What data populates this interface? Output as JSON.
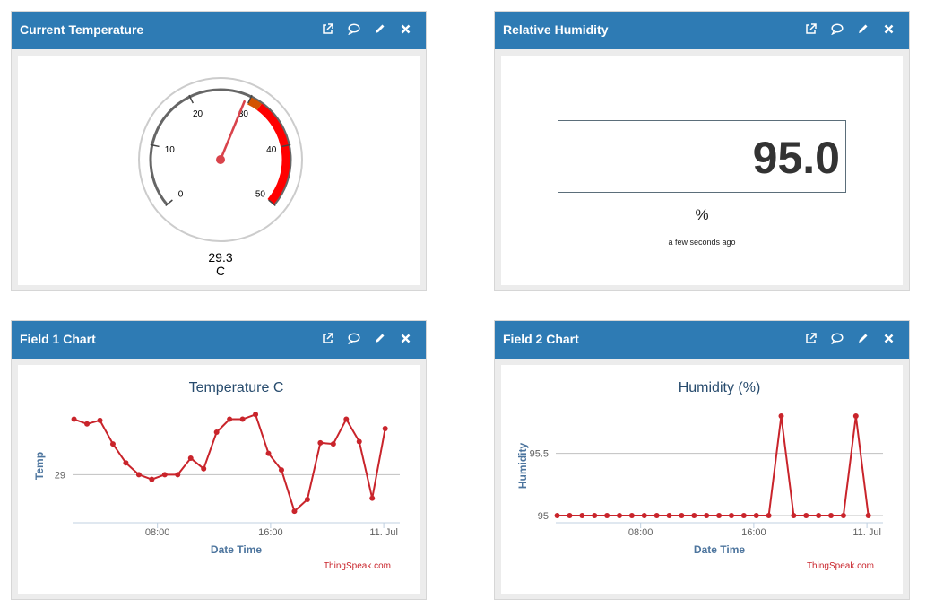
{
  "widgets": {
    "temperature": {
      "title": "Current Temperature",
      "value": "29.3",
      "unit": "C",
      "gauge": {
        "min": 0,
        "max": 50,
        "ticks": [
          "0",
          "10",
          "20",
          "30",
          "40",
          "50"
        ],
        "value": 29.3,
        "warn_from": 30,
        "warn_to": 32,
        "danger_from": 32,
        "danger_to": 50
      }
    },
    "humidity": {
      "title": "Relative Humidity",
      "value": "95.0",
      "unit": "%",
      "time": "a few seconds ago"
    },
    "field1": {
      "title": "Field 1 Chart"
    },
    "field2": {
      "title": "Field 2 Chart"
    }
  },
  "icons": [
    "external-link-icon",
    "comment-icon",
    "pencil-icon",
    "close-icon"
  ],
  "colors": {
    "header": "#2e7bb4",
    "series": "#c9242b",
    "danger": "#ff0000",
    "warn": "#d35400",
    "credit": "#c9242b"
  },
  "chart_data": [
    {
      "type": "line",
      "title": "Temperature C",
      "xlabel": "Date Time",
      "ylabel": "Temp",
      "x_ticks": [
        "08:00",
        "16:00",
        "11. Jul"
      ],
      "y_ticks": [
        "29"
      ],
      "x_range": [
        "02:00",
        "24:30"
      ],
      "ylim": [
        28.6,
        29.55
      ],
      "series": [
        {
          "values": [
            29.47,
            29.43,
            29.46,
            29.26,
            29.1,
            29.0,
            28.96,
            29.0,
            29.0,
            29.14,
            29.05,
            29.36,
            29.47,
            29.47,
            29.51,
            29.18,
            29.04,
            28.69,
            28.79,
            29.27,
            29.26,
            29.47,
            29.28,
            28.8,
            29.39
          ]
        }
      ],
      "credit": "ThingSpeak.com"
    },
    {
      "type": "line",
      "title": "Humidity (%)",
      "xlabel": "Date Time",
      "ylabel": "Humidity",
      "x_ticks": [
        "08:00",
        "16:00",
        "11. Jul"
      ],
      "y_ticks": [
        "95.5",
        "95"
      ],
      "x_range": [
        "02:00",
        "24:30"
      ],
      "ylim": [
        94.95,
        95.85
      ],
      "series": [
        {
          "values": [
            95,
            95,
            95,
            95,
            95,
            95,
            95,
            95,
            95,
            95,
            95,
            95,
            95,
            95,
            95,
            95,
            95,
            95,
            95.8,
            95,
            95,
            95,
            95,
            95,
            95.8,
            95
          ]
        }
      ],
      "credit": "ThingSpeak.com"
    }
  ]
}
